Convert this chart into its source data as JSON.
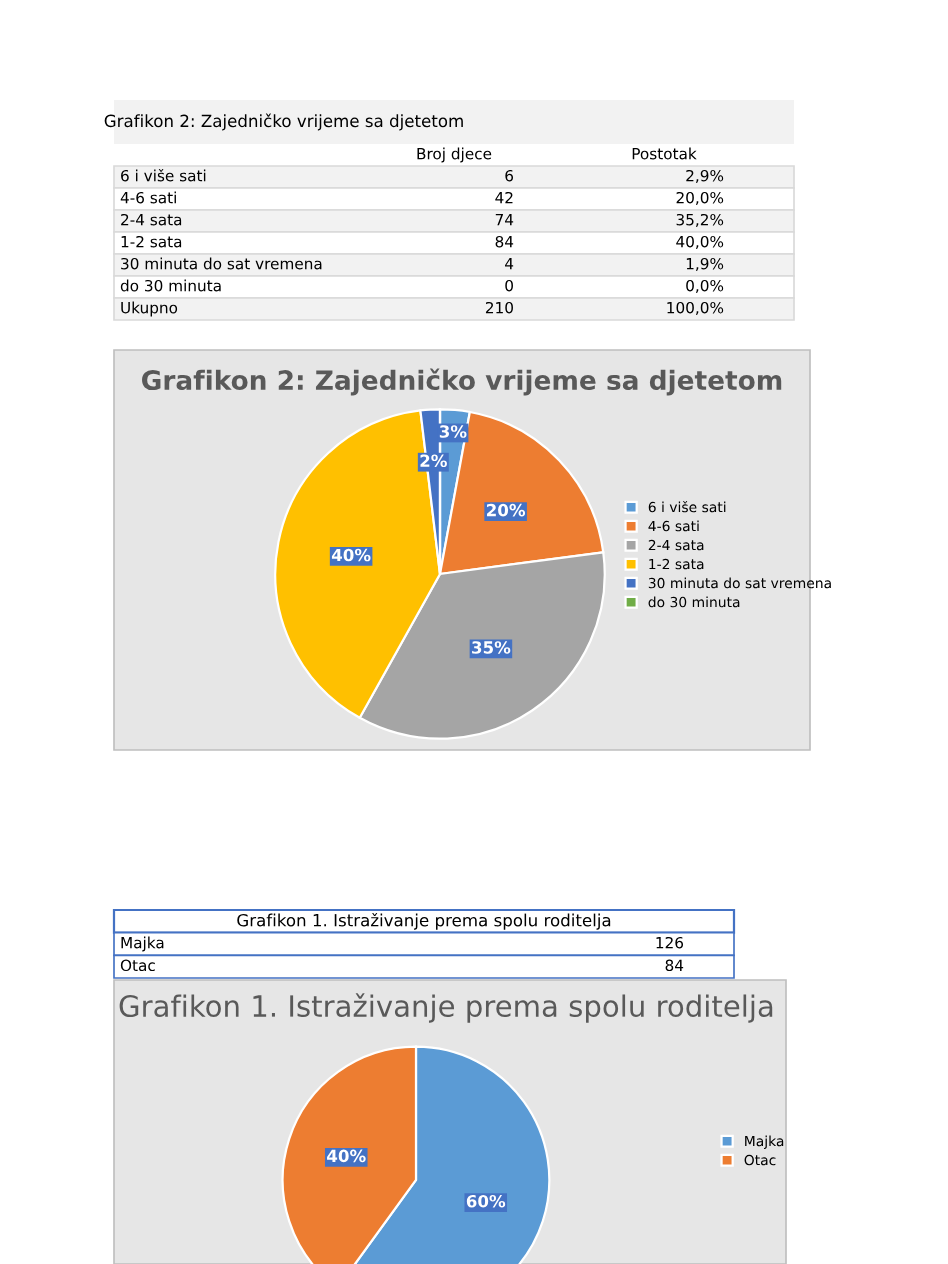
{
  "chart_data": [
    {
      "type": "pie",
      "title": "Grafikon 2: Zajedničko vrijeme sa djetetom",
      "categories": [
        "6 i više sati",
        "4-6 sati",
        "2-4 sata",
        "1-2 sata",
        "30 minuta do sat vremena",
        "do 30 minuta"
      ],
      "values": [
        2.9,
        20.0,
        35.2,
        40.0,
        1.9,
        0.0
      ],
      "colors": [
        "#5b9bd5",
        "#ed7d31",
        "#a5a5a5",
        "#ffc000",
        "#4472c4",
        "#70ad47"
      ],
      "value_labels": [
        "3%",
        "20%",
        "35%",
        "40%",
        "2%",
        null
      ],
      "legend": "right",
      "annotations": [
        "Grafikon 2: Zajedničko vrijeme sa djetetom",
        "Broj djece",
        "Postotak",
        "6 i više sati",
        "6",
        "2,9%",
        "4-6 sati",
        "42",
        "20,0%",
        "2-4 sata",
        "74",
        "35,2%",
        "1-2 sata",
        "84",
        "40,0%",
        "30 minuta do sat vremena",
        "4",
        "1,9%",
        "do 30 minuta",
        "0",
        "0,0%",
        "Ukupno",
        "210",
        "100,0%"
      ]
    },
    {
      "type": "pie",
      "title": "Grafikon 1. Istraživanje prema spolu roditelja",
      "categories": [
        "Majka",
        "Otac"
      ],
      "values": [
        60,
        40
      ],
      "colors": [
        "#5b9bd5",
        "#ed7d31"
      ],
      "value_labels": [
        "60%",
        "40%"
      ],
      "legend": "right",
      "annotations": [
        "Grafikon 1. Istraživanje prema spolu roditelja",
        "Majka",
        "126",
        "Otac",
        "84"
      ]
    }
  ]
}
